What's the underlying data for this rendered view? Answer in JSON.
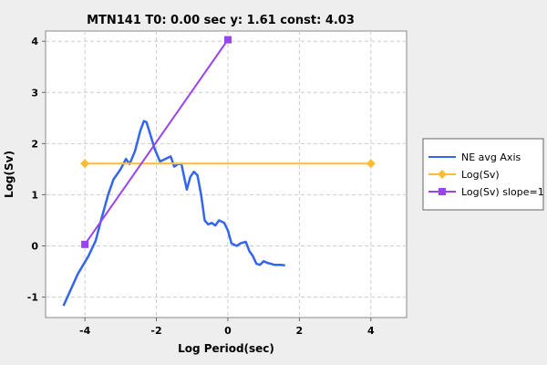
{
  "chart_data": {
    "type": "line",
    "title": "MTN141 T0: 0.00 sec  y: 1.61 const: 4.03",
    "xlabel": "Log Period(sec)",
    "ylabel": "Log(Sv)",
    "xlim": [
      -5.1,
      5.0
    ],
    "ylim": [
      -1.4,
      4.2
    ],
    "xticks": [
      -4,
      -2,
      0,
      2,
      4
    ],
    "xtick_labels": [
      "-4",
      "-2",
      "0",
      "2",
      "4"
    ],
    "yticks": [
      -1,
      0,
      1,
      2,
      3,
      4
    ],
    "ytick_labels": [
      "-1",
      "0",
      "1",
      "2",
      "3",
      "4"
    ],
    "grid": true,
    "legend_position": "right",
    "series": [
      {
        "name": "NE avg Axis",
        "color": "#3366ee",
        "marker": "none",
        "points": [
          [
            -4.6,
            -1.17
          ],
          [
            -4.2,
            -0.55
          ],
          [
            -3.9,
            -0.2
          ],
          [
            -3.7,
            0.1
          ],
          [
            -3.55,
            0.5
          ],
          [
            -3.35,
            1.0
          ],
          [
            -3.2,
            1.3
          ],
          [
            -3.0,
            1.5
          ],
          [
            -2.85,
            1.7
          ],
          [
            -2.75,
            1.6
          ],
          [
            -2.6,
            1.85
          ],
          [
            -2.45,
            2.25
          ],
          [
            -2.35,
            2.44
          ],
          [
            -2.28,
            2.42
          ],
          [
            -2.18,
            2.2
          ],
          [
            -2.05,
            1.9
          ],
          [
            -1.9,
            1.65
          ],
          [
            -1.75,
            1.7
          ],
          [
            -1.6,
            1.75
          ],
          [
            -1.5,
            1.55
          ],
          [
            -1.4,
            1.6
          ],
          [
            -1.3,
            1.6
          ],
          [
            -1.15,
            1.1
          ],
          [
            -1.05,
            1.35
          ],
          [
            -0.95,
            1.45
          ],
          [
            -0.85,
            1.38
          ],
          [
            -0.75,
            1.0
          ],
          [
            -0.65,
            0.5
          ],
          [
            -0.55,
            0.42
          ],
          [
            -0.45,
            0.45
          ],
          [
            -0.35,
            0.4
          ],
          [
            -0.25,
            0.5
          ],
          [
            -0.1,
            0.45
          ],
          [
            0.0,
            0.3
          ],
          [
            0.1,
            0.05
          ],
          [
            0.25,
            0.0
          ],
          [
            0.35,
            0.05
          ],
          [
            0.5,
            0.08
          ],
          [
            0.6,
            -0.1
          ],
          [
            0.7,
            -0.2
          ],
          [
            0.8,
            -0.35
          ],
          [
            0.9,
            -0.37
          ],
          [
            1.0,
            -0.3
          ],
          [
            1.1,
            -0.33
          ],
          [
            1.2,
            -0.35
          ],
          [
            1.3,
            -0.37
          ],
          [
            1.45,
            -0.37
          ],
          [
            1.6,
            -0.38
          ]
        ]
      },
      {
        "name": "Log(Sv)",
        "color": "#ffbb33",
        "marker": "diamond",
        "points": [
          [
            -4,
            1.61
          ],
          [
            4,
            1.61
          ]
        ]
      },
      {
        "name": "Log(Sv) slope=1",
        "color": "#9944ee",
        "marker": "square",
        "points": [
          [
            -4,
            0.03
          ],
          [
            0,
            4.03
          ]
        ]
      }
    ]
  }
}
